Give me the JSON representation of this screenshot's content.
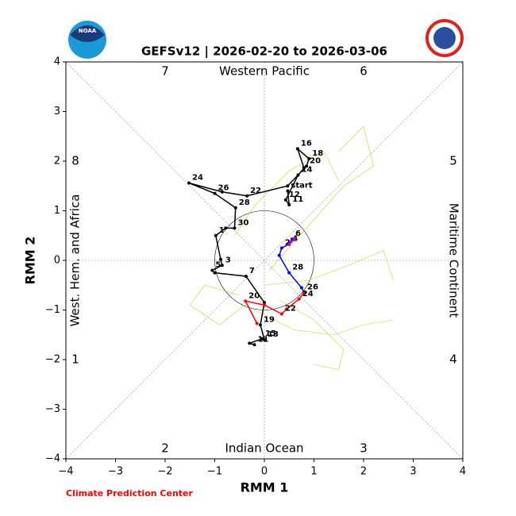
{
  "chart_data": {
    "type": "phase",
    "title": "GEFSv12 | 2026-02-20 to 2026-03-06",
    "xlabel": "RMM 1",
    "ylabel": "RMM 2",
    "credit": "Climate Prediction Center",
    "logo_text": "NOAA",
    "xlim": [
      -4,
      4
    ],
    "ylim": [
      -4,
      4
    ],
    "xticks": [
      {
        "value": -4,
        "label": "−4"
      },
      {
        "value": -3,
        "label": "−3"
      },
      {
        "value": -2,
        "label": "−2"
      },
      {
        "value": -1,
        "label": "−1"
      },
      0,
      1,
      2,
      3,
      4
    ],
    "yticks": [
      {
        "value": -4,
        "label": "−4"
      },
      {
        "value": -3,
        "label": "−3"
      },
      {
        "value": -2,
        "label": "−2"
      },
      {
        "value": -1,
        "label": "−1"
      },
      0,
      1,
      2,
      3,
      4
    ],
    "phases": [
      "1",
      "2",
      "3",
      "4",
      "5",
      "6",
      "7",
      "8"
    ],
    "regions": {
      "top": "Western Pacific",
      "bottom": "Indian Ocean",
      "left": "West. Hem. and Africa",
      "right": "Maritime Continent"
    },
    "series": [
      {
        "color": "#cccc33",
        "x": [
          0.1,
          0.8,
          1.6,
          2.2,
          2.0,
          1.5
        ],
        "y": [
          -0.2,
          0.6,
          1.5,
          1.9,
          2.7,
          2.2
        ],
        "labels": [
          null,
          null,
          null,
          null,
          null,
          null
        ]
      },
      {
        "color": "#cccc33",
        "x": [
          0.0,
          0.9,
          1.7,
          2.4,
          2.6
        ],
        "y": [
          -0.5,
          -0.4,
          -0.1,
          0.2,
          -0.4
        ],
        "labels": [
          null,
          null,
          null,
          null,
          null
        ]
      },
      {
        "color": "#cccc33",
        "x": [
          -0.2,
          0.6,
          1.4,
          2.0,
          2.6
        ],
        "y": [
          -1.0,
          -1.4,
          -1.5,
          -1.3,
          -1.2
        ],
        "labels": [
          null,
          null,
          null,
          null,
          null
        ]
      },
      {
        "color": "#cccc33",
        "x": [
          0.3,
          1.0,
          1.6,
          1.5,
          1.0
        ],
        "y": [
          -0.8,
          -1.2,
          -1.8,
          -2.2,
          -2.1
        ],
        "labels": [
          null,
          null,
          null,
          null,
          null
        ]
      },
      {
        "color": "#cccc33",
        "x": [
          -0.6,
          -0.2,
          0.5,
          1.2,
          1.5
        ],
        "y": [
          0.5,
          1.1,
          1.8,
          2.2,
          1.6
        ],
        "labels": [
          null,
          null,
          null,
          null,
          null
        ]
      },
      {
        "color": "#cccc33",
        "x": [
          -0.5,
          -1.2,
          -1.5,
          -0.9,
          -0.4
        ],
        "y": [
          -0.7,
          -0.5,
          -0.9,
          -1.3,
          -0.9
        ],
        "labels": [
          null,
          null,
          null,
          null,
          null
        ]
      },
      {
        "color": "#000000",
        "x": [
          0.47,
          0.5,
          0.43,
          0.68,
          0.8,
          0.67,
          0.9,
          0.85,
          0.47,
          -0.35,
          -0.85,
          -1.52,
          -1.0,
          -0.58,
          -0.6,
          -0.78,
          -0.98,
          -0.88,
          -0.85,
          -1.05,
          -1.0,
          -0.37,
          0.0,
          -0.08,
          0.0,
          -0.05,
          -0.3,
          -0.2
        ],
        "y": [
          1.4,
          1.12,
          1.22,
          1.72,
          1.86,
          2.25,
          2.05,
          1.9,
          1.5,
          1.3,
          1.38,
          1.56,
          1.35,
          1.06,
          0.65,
          0.65,
          0.5,
          0.02,
          -0.1,
          -0.2,
          -0.25,
          -0.32,
          -0.85,
          -1.3,
          -1.6,
          -1.58,
          -1.67,
          -1.7
        ],
        "labels": [
          "start",
          "11",
          "12",
          "14",
          null,
          "16",
          "18",
          "20",
          null,
          "22",
          null,
          "24",
          "26",
          "28",
          "30",
          null,
          "1",
          null,
          "3",
          "5",
          null,
          "7",
          null,
          "19",
          "13",
          "15",
          null,
          "11"
        ]
      },
      {
        "color": "#0000ff",
        "x": [
          0.56,
          0.5,
          0.35,
          0.3,
          0.5,
          0.75,
          0.8
        ],
        "y": [
          0.43,
          0.33,
          0.25,
          0.1,
          -0.25,
          -0.55,
          -0.65
        ],
        "labels": [
          "6",
          "4",
          "2",
          null,
          "28",
          null,
          "26"
        ]
      },
      {
        "color": "#ff0000",
        "x": [
          0.8,
          0.7,
          0.45,
          0.35,
          0.0,
          -0.38,
          -0.15
        ],
        "y": [
          -0.65,
          -0.78,
          -0.98,
          -1.08,
          -0.9,
          -0.82,
          -1.27
        ],
        "labels": [
          null,
          "24",
          null,
          "22",
          null,
          "20",
          null
        ]
      },
      {
        "color": "#cc00cc",
        "x": [
          0.5,
          0.6
        ],
        "y": [
          0.32,
          0.42
        ],
        "labels": [
          null,
          null
        ]
      }
    ]
  }
}
